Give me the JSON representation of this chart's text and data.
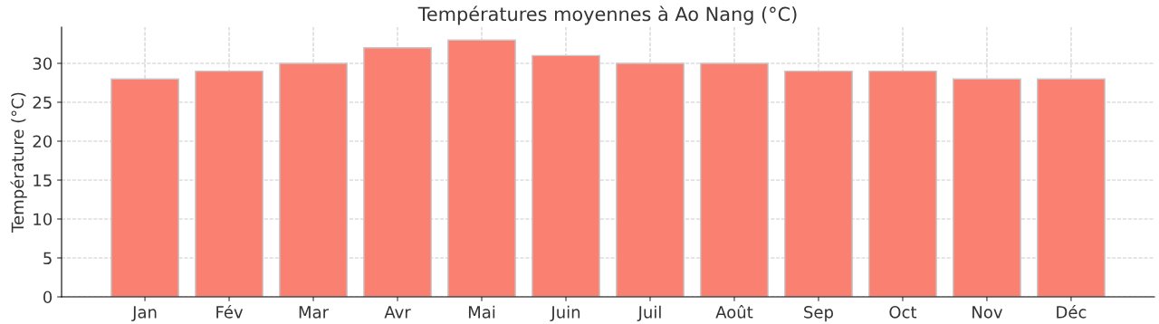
{
  "chart_data": {
    "type": "bar",
    "title": "Températures moyennes à Ao Nang (°C)",
    "ylabel": "Température (°C)",
    "categories": [
      "Jan",
      "Fév",
      "Mar",
      "Avr",
      "Mai",
      "Juin",
      "Juil",
      "Août",
      "Sep",
      "Oct",
      "Nov",
      "Déc"
    ],
    "values": [
      28,
      29,
      30,
      32,
      33,
      31,
      30,
      30,
      29,
      29,
      28,
      28
    ],
    "color": "#fa8072",
    "ylim": [
      0,
      34.65
    ],
    "yticks": [
      0,
      5,
      10,
      15,
      20,
      25,
      30
    ],
    "grid": true,
    "legend": false
  }
}
